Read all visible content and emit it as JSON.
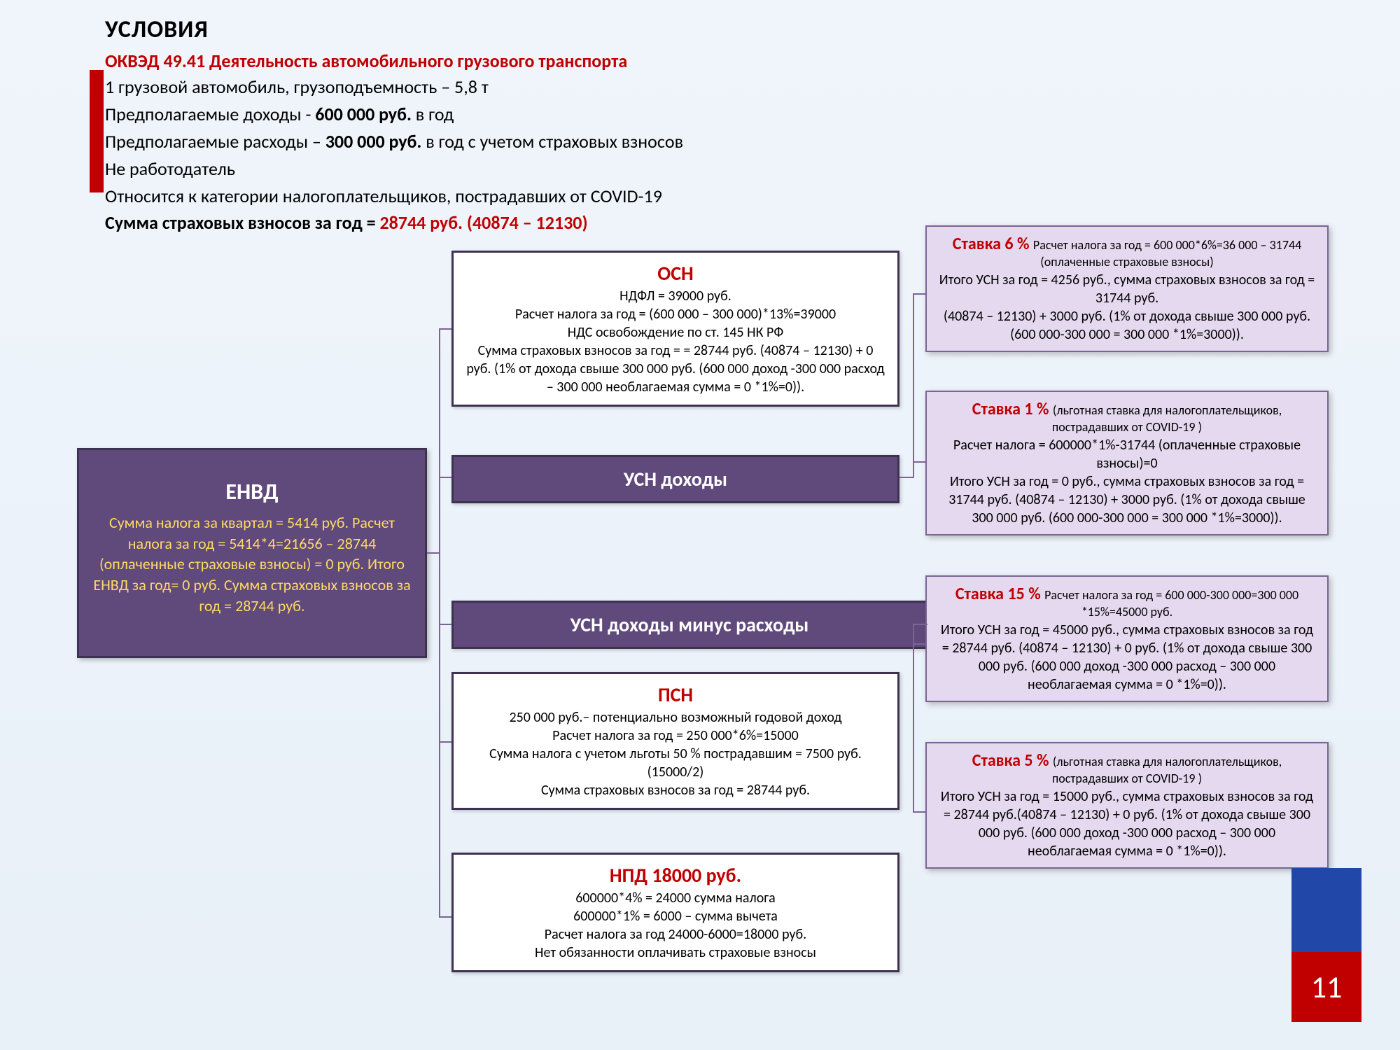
{
  "header": {
    "title": "УСЛОВИЯ",
    "okved": "ОКВЭД 49.41 Деятельность автомобильного грузового транспорта",
    "line1": "1 грузовой автомобиль, грузоподъемность – 5,8 т",
    "line2a": "Предполагаемые доходы - ",
    "line2b": "600 000 руб.",
    "line2c": " в год",
    "line3a": "Предполагаемые расходы – ",
    "line3b": "300 000 руб.",
    "line3c": " в год с учетом страховых взносов",
    "line4": "Не работодатель",
    "line5": "Относится к категории налогоплательщиков, пострадавших от COVID-19",
    "line6a": "Сумма страховых взносов за год = ",
    "line6b": "28744 руб. (40874 – 12130)"
  },
  "envd": {
    "title": "ЕНВД",
    "body": "Сумма налога за квартал = 5414 руб. Расчет налога за год = 5414*4=21656 – 28744 (оплаченные страховые взносы) = 0 руб. Итого ЕНВД за год= 0  руб. Сумма страховых взносов за год = 28744 руб."
  },
  "osn": {
    "title": "ОСН",
    "body": "НДФЛ = 39000 руб.\nРасчет налога за год = (600 000 – 300 000)*13%=39000\nНДС   освобождение по ст. 145 НК РФ\nСумма страховых взносов за год = = 28744 руб. (40874 – 12130) + 0 руб. (1% от дохода свыше 300 000 руб. (600 000 доход -300 000 расход – 300 000 необлагаемая сумма = 0 *1%=0))."
  },
  "usn_income_label": "УСН доходы",
  "usn_expense_label": "УСН доходы минус расходы",
  "psn": {
    "title": "ПСН",
    "body": "250 000 руб.– потенциально возможный годовой доход\nРасчет налога за год = 250 000*6%=15000\nСумма налога с учетом льготы 50 % пострадавшим = 7500 руб. (15000/2)\nСумма страховых взносов за год = 28744 руб."
  },
  "npd": {
    "title": "НПД 18000 руб.",
    "body": "600000*4% = 24000 сумма налога\n600000*1% = 6000 – сумма вычета\nРасчет налога за год 24000-6000=18000 руб.\nНет обязанности оплачивать страховые взносы"
  },
  "rate6": {
    "title": "Ставка 6 % ",
    "title_small": "Расчет налога за год = 600 000*6%=36 000 – 31744 (оплаченные страховые взносы)",
    "body": "Итого УСН за год = 4256 руб., сумма страховых взносов за год = 31744 руб.\n(40874 – 12130) + 3000 руб. (1% от дохода свыше 300 000 руб. (600 000-300 000 = 300 000 *1%=3000))."
  },
  "rate1": {
    "title": "Ставка 1 % ",
    "title_small": "(льготная ставка для налогоплательщиков, пострадавших от COVID-19 )",
    "body": "Расчет налога = 600000*1%-31744 (оплаченные страховые взносы)=0\nИтого УСН за год = 0 руб., сумма страховых взносов за год = 31744 руб. (40874 – 12130) + 3000 руб. (1% от дохода свыше 300 000 руб. (600 000-300 000 = 300 000 *1%=3000))."
  },
  "rate15": {
    "title": "Ставка 15 % ",
    "title_small": "Расчет налога за год = 600 000-300 000=300 000 *15%=45000 руб.",
    "body": "Итого УСН за год = 45000 руб., сумма страховых взносов за год = 28744 руб. (40874 – 12130) + 0 руб. (1% от дохода свыше 300 000 руб. (600 000 доход -300 000 расход – 300 000 необлагаемая сумма = 0 *1%=0))."
  },
  "rate5": {
    "title": "Ставка 5 % ",
    "title_small": "(льготная ставка для налогоплательщиков, пострадавших от COVID-19 )",
    "body": "Итого УСН за год = 15000 руб., сумма страховых взносов за год = 28744 руб.(40874 – 12130) + 0 руб. (1% от дохода свыше 300 000 руб. (600 000 доход -300 000 расход – 300 000 необлагаемая сумма = 0 *1%=0))."
  },
  "page_number": "11",
  "colors": {
    "purple_dark": "#604a7b",
    "purple_border": "#3e3152",
    "purple_light": "#e5d9ef",
    "red": "#c00000",
    "blue": "#2148a8",
    "yellow": "#ffd966",
    "connector": "#7c6494"
  }
}
